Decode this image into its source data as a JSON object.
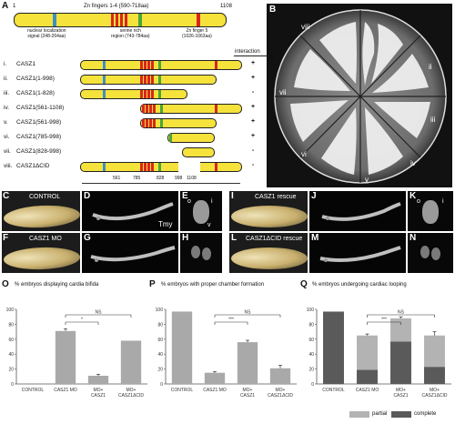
{
  "panels": {
    "A": "A",
    "B": "B",
    "C": "C",
    "D": "D",
    "E": "E",
    "F": "F",
    "G": "G",
    "H": "H",
    "I": "I",
    "J": "J",
    "K": "K",
    "L": "L",
    "M": "M",
    "N": "N",
    "O": "O",
    "P": "P",
    "Q": "Q"
  },
  "diagram": {
    "start": "1",
    "end": "1108",
    "zinc_title": "Zn fingers 1-4 (590-718aa)",
    "nls": "nuclear localization\nsignal (248-264aa)",
    "serine": "serine rich\nregion (743-784aa)",
    "znf5": "Zn finger 5\n(1026-1063aa)",
    "interaction_header": "interaction",
    "constructs": [
      {
        "num": "i.",
        "name": "CASZ1",
        "result": "+"
      },
      {
        "num": "ii.",
        "name": "CASZ1(1-998)",
        "result": "+"
      },
      {
        "num": "iii.",
        "name": "CASZ1(1-828)",
        "result": "-"
      },
      {
        "num": "iv.",
        "name": "CASZ1(561-1108)",
        "result": "+"
      },
      {
        "num": "v.",
        "name": "CASZ1(561-998)",
        "result": "+"
      },
      {
        "num": "vi.",
        "name": "CASZ1(785-998)",
        "result": "+"
      },
      {
        "num": "vii.",
        "name": "CASZ1(828-998)",
        "result": "-"
      },
      {
        "num": "viii.",
        "name": "CASZ1ΔCID",
        "result": "-"
      }
    ],
    "scale_ticks": [
      "561",
      "785",
      "828",
      "998",
      "1108"
    ]
  },
  "plate": {
    "sectors": [
      "i",
      "ii",
      "iii",
      "iv",
      "v",
      "vi",
      "vii",
      "viii"
    ]
  },
  "photos": {
    "control": "CONTROL",
    "casz1_mo": "CASZ1 MO",
    "tmy": "Tmy",
    "o": "o",
    "i": "i",
    "v": "v",
    "rescue": "CASZ1 rescue",
    "dcid_rescue": "CASZ1ΔCID rescue"
  },
  "chart_data": [
    {
      "type": "bar",
      "title": "% embryos displaying cardia bifida",
      "categories": [
        "CONTROL",
        "CASZ1 MO",
        "MO+ CASZ1",
        "MO+ CASZ1ΔCID"
      ],
      "values": [
        0,
        71,
        11,
        58
      ],
      "errors": [
        0,
        3,
        2,
        0
      ],
      "ylim": [
        0,
        100
      ],
      "yticks": [
        "0",
        "20",
        "40",
        "60",
        "80",
        "100"
      ],
      "significance": [
        {
          "label": "*",
          "from": 1,
          "to": 2
        },
        {
          "label": "NS",
          "from": 1,
          "to": 3
        }
      ]
    },
    {
      "type": "bar",
      "title": "% embryos with proper chamber formation",
      "categories": [
        "CONTROL",
        "CASZ1 MO",
        "MO+ CASZ1",
        "MO+ CASZ1ΔCID"
      ],
      "values": [
        97,
        15,
        56,
        21
      ],
      "errors": [
        0,
        1.5,
        2.5,
        4
      ],
      "ylim": [
        0,
        100
      ],
      "yticks": [
        "0",
        "20",
        "40",
        "60",
        "80",
        "100"
      ],
      "significance": [
        {
          "label": "***",
          "from": 1,
          "to": 2
        },
        {
          "label": "NS",
          "from": 1,
          "to": 3
        }
      ]
    },
    {
      "type": "bar",
      "title": "% embryos undergoing cardiac looping",
      "categories": [
        "CONTROL",
        "CASZ1 MO",
        "MO+ CASZ1",
        "MO+ CASZ1ΔCID"
      ],
      "series": [
        {
          "name": "complete",
          "values": [
            97,
            19,
            57,
            23
          ]
        },
        {
          "name": "partial",
          "values": [
            0,
            46,
            31,
            42
          ]
        }
      ],
      "errors": [
        0,
        2,
        2,
        5
      ],
      "ylim": [
        0,
        100
      ],
      "yticks": [
        "0",
        "20",
        "40",
        "60",
        "80",
        "100"
      ],
      "significance": [
        {
          "label": "***",
          "from": 1,
          "to": 2
        },
        {
          "label": "NS",
          "from": 1,
          "to": 3
        }
      ],
      "legend": [
        "partial",
        "complete"
      ],
      "colors": {
        "partial": "#b3b3b3",
        "complete": "#5a5a5a"
      }
    }
  ]
}
